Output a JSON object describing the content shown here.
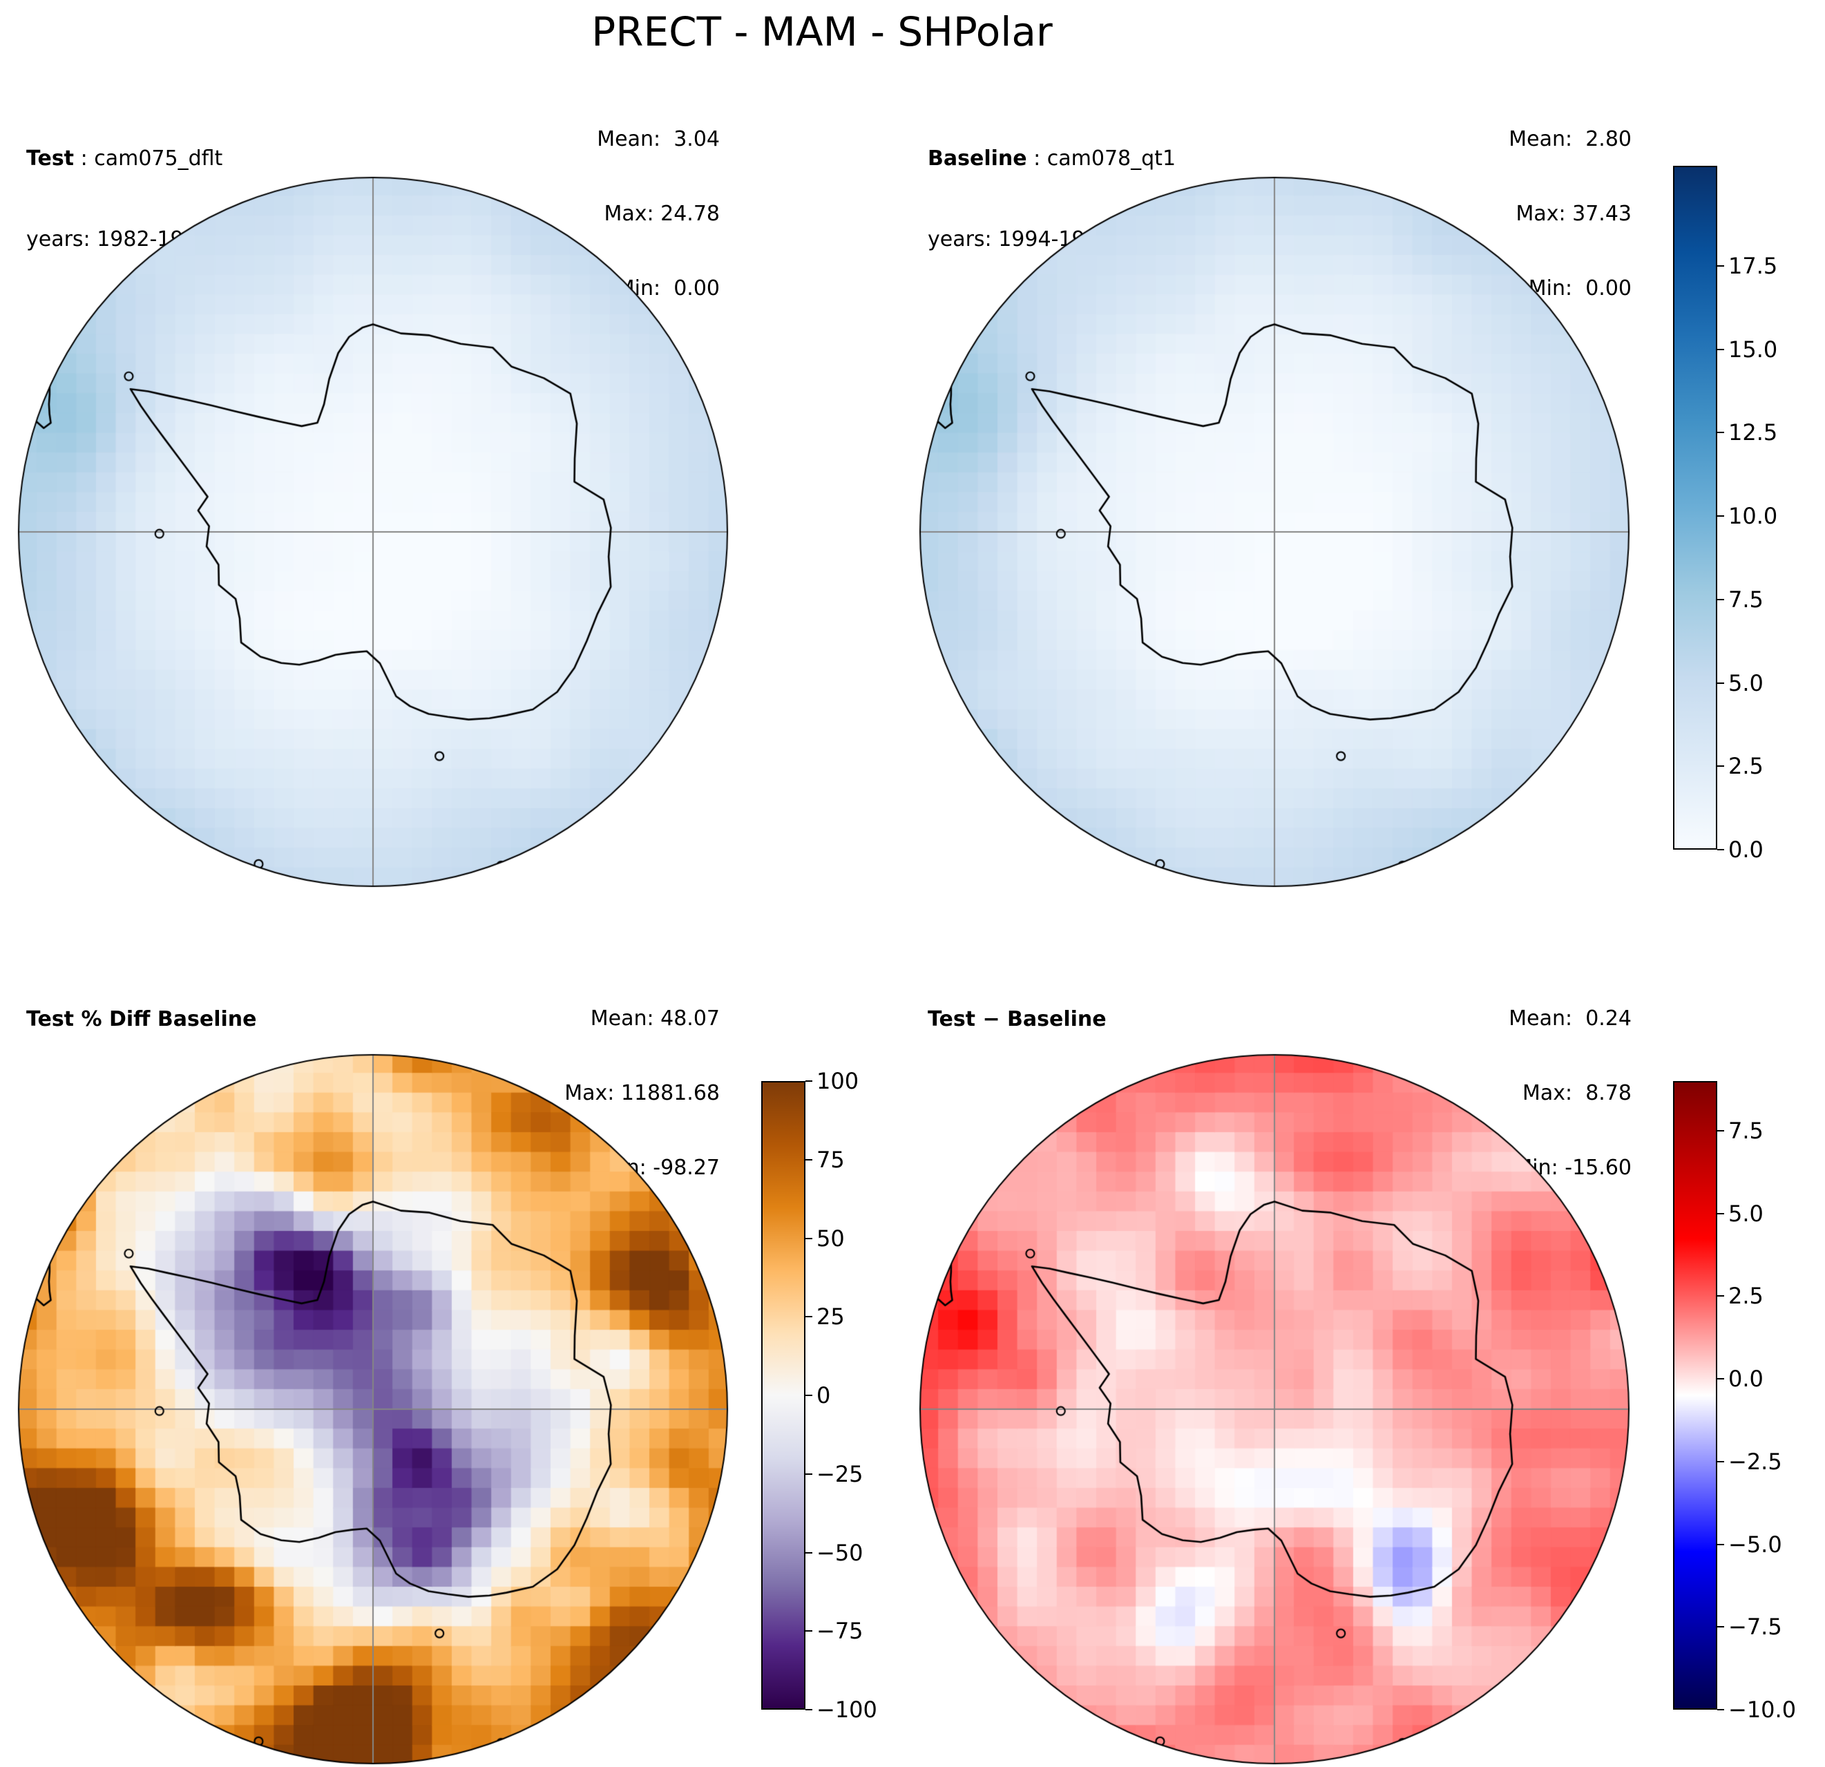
{
  "title": "PRECT - MAM - SHPolar",
  "panels": [
    {
      "id": "test",
      "label_bold": "Test",
      "label_rest": " : cam075_dflt",
      "years": "years: 1982-1983",
      "stats": {
        "mean": "Mean:  3.04",
        "max": "Max: 24.78",
        "min": "Min:  0.00"
      }
    },
    {
      "id": "baseline",
      "label_bold": "Baseline",
      "label_rest": " : cam078_qt1",
      "years": "years: 1994-1995",
      "stats": {
        "mean": "Mean:  2.80",
        "max": "Max: 37.43",
        "min": "Min:  0.00"
      }
    },
    {
      "id": "pct_diff",
      "label_bold": "Test % Diff Baseline",
      "label_rest": "",
      "years": "",
      "stats": {
        "mean": "Mean: 48.07",
        "max": "Max: 11881.68",
        "min": "Min: -98.27"
      }
    },
    {
      "id": "diff",
      "label_bold": "Test − Baseline",
      "label_rest": "",
      "years": "",
      "stats": {
        "mean": "Mean:  0.24",
        "max": "Max:  8.78",
        "min": "Min: -15.60"
      }
    }
  ],
  "colorbars": [
    {
      "id": "top",
      "vmin": 0,
      "vmax": 20.5,
      "colormap": "Blues",
      "ticks": [
        {
          "v": 17.5,
          "label": "17.5"
        },
        {
          "v": 15.0,
          "label": "15.0"
        },
        {
          "v": 12.5,
          "label": "12.5"
        },
        {
          "v": 10.0,
          "label": "10.0"
        },
        {
          "v": 7.5,
          "label": "7.5"
        },
        {
          "v": 5.0,
          "label": "5.0"
        },
        {
          "v": 2.5,
          "label": "2.5"
        },
        {
          "v": 0.0,
          "label": "0.0"
        }
      ]
    },
    {
      "id": "pct",
      "vmin": -100,
      "vmax": 100,
      "colormap": "PuOr_r",
      "ticks": [
        {
          "v": 100,
          "label": "100"
        },
        {
          "v": 75,
          "label": "75"
        },
        {
          "v": 50,
          "label": "50"
        },
        {
          "v": 25,
          "label": "25"
        },
        {
          "v": 0,
          "label": "0"
        },
        {
          "v": -25,
          "label": "−25"
        },
        {
          "v": -50,
          "label": "−50"
        },
        {
          "v": -75,
          "label": "−75"
        },
        {
          "v": -100,
          "label": "−100"
        }
      ]
    },
    {
      "id": "diff",
      "vmin": -10,
      "vmax": 9,
      "colormap": "seismic",
      "ticks": [
        {
          "v": 7.5,
          "label": "7.5"
        },
        {
          "v": 5.0,
          "label": "5.0"
        },
        {
          "v": 2.5,
          "label": "2.5"
        },
        {
          "v": 0.0,
          "label": "0.0"
        },
        {
          "v": -2.5,
          "label": "−2.5"
        },
        {
          "v": -5.0,
          "label": "−5.0"
        },
        {
          "v": -7.5,
          "label": "−7.5"
        },
        {
          "v": -10.0,
          "label": "−10.0"
        }
      ]
    }
  ],
  "colormaps": {
    "Blues": [
      [
        0,
        "#f7fbff"
      ],
      [
        0.125,
        "#deebf7"
      ],
      [
        0.25,
        "#c6dbef"
      ],
      [
        0.375,
        "#9ecae1"
      ],
      [
        0.5,
        "#6baed6"
      ],
      [
        0.625,
        "#4292c6"
      ],
      [
        0.75,
        "#2171b5"
      ],
      [
        0.875,
        "#08519c"
      ],
      [
        1,
        "#08306b"
      ]
    ],
    "PuOr_r": [
      [
        0,
        "#2d004b"
      ],
      [
        0.1,
        "#542788"
      ],
      [
        0.2,
        "#8073ac"
      ],
      [
        0.3,
        "#b2abd2"
      ],
      [
        0.4,
        "#d8daeb"
      ],
      [
        0.5,
        "#f7f7f7"
      ],
      [
        0.6,
        "#fee0b6"
      ],
      [
        0.7,
        "#fdb863"
      ],
      [
        0.8,
        "#e08214"
      ],
      [
        0.9,
        "#b35806"
      ],
      [
        1,
        "#7f3b08"
      ]
    ],
    "seismic": [
      [
        0,
        "#00004d"
      ],
      [
        0.25,
        "#0000ff"
      ],
      [
        0.5,
        "#ffffff"
      ],
      [
        0.75,
        "#ff0000"
      ],
      [
        1,
        "#800000"
      ]
    ]
  },
  "chart_data": {
    "type": "heatmap",
    "figure_title": "PRECT - MAM - SHPolar",
    "variable": "PRECT",
    "season": "MAM",
    "region": "SHPolar",
    "projection": "south-polar-stereographic",
    "panels": [
      {
        "name": "Test",
        "case": "cam075_dflt",
        "years": "1982-1983",
        "mean": 3.04,
        "max": 24.78,
        "min": 0.0,
        "colormap": "Blues",
        "colorbar_ticks": [
          0.0,
          2.5,
          5.0,
          7.5,
          10.0,
          12.5,
          15.0,
          17.5
        ],
        "description": "Light-blue precipitation field over the Southern Ocean, near-white (dry) over the Antarctic interior, slightly darker blue patches near the tip of South America."
      },
      {
        "name": "Baseline",
        "case": "cam078_qt1",
        "years": "1994-1995",
        "mean": 2.8,
        "max": 37.43,
        "min": 0.0,
        "colormap": "Blues",
        "colorbar_ticks": [
          0.0,
          2.5,
          5.0,
          7.5,
          10.0,
          12.5,
          15.0,
          17.5
        ],
        "description": "Nearly identical climatology to the Test panel: light blue ocean ring, white dry Antarctic interior."
      },
      {
        "name": "Test % Diff Baseline",
        "mean": 48.07,
        "max": 11881.68,
        "min": -98.27,
        "colormap": "PuOr_r",
        "colorbar_ticks": [
          -100,
          -75,
          -50,
          -25,
          0,
          25,
          50,
          75,
          100
        ],
        "description": "Percent difference: widespread orange (positive) patches, strongest dark-brown blobs near the bottom edge and west of the Ross region, lavender/purple (negative) patches over and around the continental interior."
      },
      {
        "name": "Test − Baseline",
        "mean": 0.24,
        "max": 8.78,
        "min": -15.6,
        "colormap": "seismic",
        "colorbar_ticks": [
          -10.0,
          -7.5,
          -5.0,
          -2.5,
          0.0,
          2.5,
          5.0,
          7.5
        ],
        "description": "Absolute difference: mostly faint-to-light red over the ocean ring, near-white over the interior, scattered faint blue patches."
      }
    ]
  }
}
